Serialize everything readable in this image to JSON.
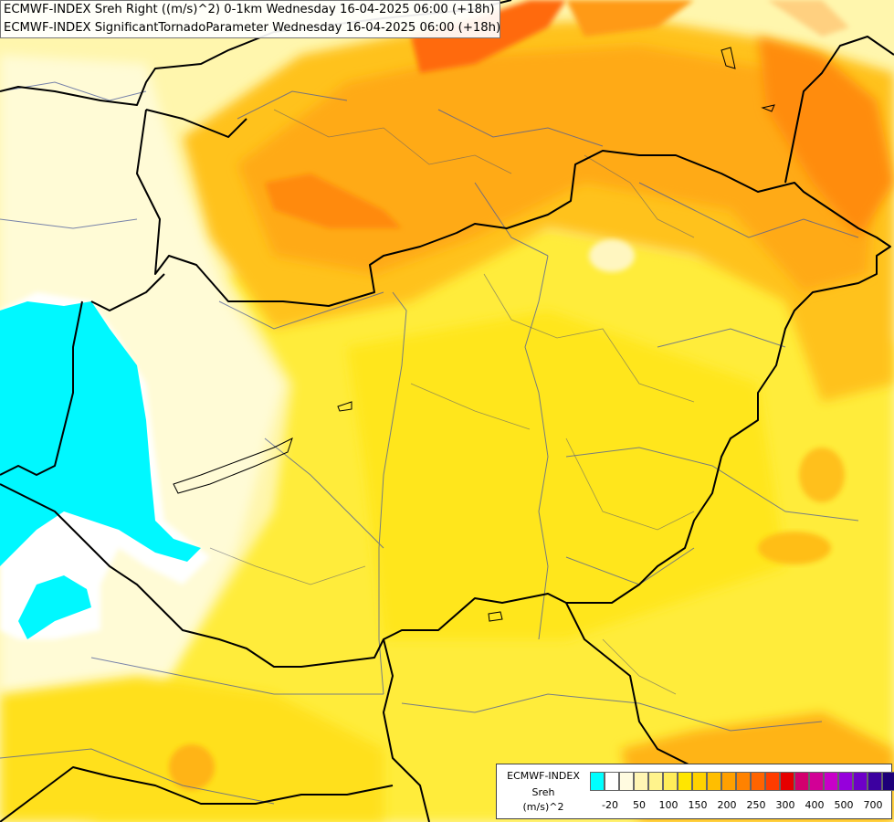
{
  "titles": [
    "ECMWF-INDEX Sreh Right ((m/s)^2) 0-1km Wednesday 16-04-2025 06:00 (+18h)",
    "ECMWF-INDEX SignificantTornadoParameter Wednesday 16-04-2025 06:00 (+18h)"
  ],
  "legend": {
    "model": "ECMWF-INDEX",
    "variable": "Sreh",
    "unit": "(m/s)^2",
    "colors": [
      "#00ffff",
      "#ffffff",
      "#fffbe0",
      "#fff5b4",
      "#fff38c",
      "#ffed5a",
      "#ffe600",
      "#ffd200",
      "#ffbe00",
      "#ffa000",
      "#ff8200",
      "#ff6400",
      "#ff3c00",
      "#e60000",
      "#d2006e",
      "#d20096",
      "#c800c8",
      "#9600dc",
      "#6e00c8",
      "#3c00a0",
      "#1e0078"
    ],
    "ticks": [
      "-20",
      "50",
      "100",
      "150",
      "200",
      "250",
      "300",
      "400",
      "500",
      "700"
    ]
  }
}
